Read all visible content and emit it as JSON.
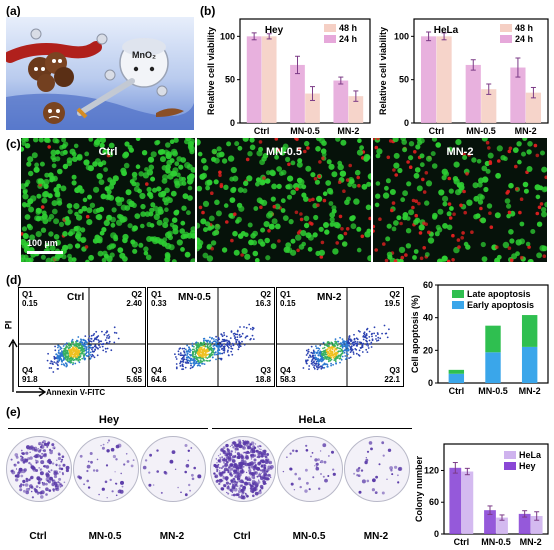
{
  "panels": {
    "a": "(a)",
    "b": "(b)",
    "c": "(c)",
    "d": "(d)",
    "e": "(e)"
  },
  "illustration": {
    "agent_label": "MnO₂"
  },
  "colors": {
    "pink24": "#e6a8da",
    "peach48": "#f5cfc4",
    "green": "#2fbf50",
    "blue": "#3aa6ea",
    "purple": "#8a47d6",
    "lavender": "#cfb3ee",
    "cell_green": "#2ecf33",
    "cell_red": "#e02020"
  },
  "panel_c": {
    "images": [
      {
        "label": "Ctrl"
      },
      {
        "label": "MN-0.5"
      },
      {
        "label": "MN-2"
      }
    ],
    "scale_bar": "100 µm"
  },
  "panel_d": {
    "x_axis": "Annexin V-FITC",
    "y_axis": "PI",
    "plots": [
      {
        "label": "Ctrl",
        "q1_name": "Q1",
        "q1": "0.15",
        "q2_name": "Q2",
        "q2": "2.40",
        "q3_name": "Q3",
        "q3": "5.65",
        "q4_name": "Q4",
        "q4": "91.8"
      },
      {
        "label": "MN-0.5",
        "q1_name": "Q1",
        "q1": "0.33",
        "q2_name": "Q2",
        "q2": "16.3",
        "q3_name": "Q3",
        "q3": "18.8",
        "q4_name": "Q4",
        "q4": "64.6"
      },
      {
        "label": "MN-2",
        "q1_name": "Q1",
        "q1": "0.15",
        "q2_name": "Q2",
        "q2": "19.5",
        "q3_name": "Q3",
        "q3": "22.1",
        "q4_name": "Q4",
        "q4": "58.3"
      }
    ]
  },
  "panel_e": {
    "group_hey": "Hey",
    "group_hela": "HeLa",
    "dishes": [
      {
        "label": "Ctrl"
      },
      {
        "label": "MN-0.5"
      },
      {
        "label": "MN-2"
      },
      {
        "label": "Ctrl"
      },
      {
        "label": "MN-0.5"
      },
      {
        "label": "MN-2"
      }
    ]
  },
  "chart_data": [
    {
      "id": "b-hey",
      "type": "bar",
      "title": "Hey",
      "categories": [
        "Ctrl",
        "MN-0.5",
        "MN-2"
      ],
      "ylabel": "Relative cell viability",
      "ylim": [
        0,
        120
      ],
      "yticks": [
        0,
        50,
        100
      ],
      "legend": "top-right",
      "series": [
        {
          "name": "24 h",
          "color": "#e6a8da",
          "values": [
            100,
            67,
            49
          ],
          "errors": [
            4,
            10,
            4
          ]
        },
        {
          "name": "48 h",
          "color": "#f5cfc4",
          "values": [
            100,
            34,
            31
          ],
          "errors": [
            3,
            8,
            6
          ]
        }
      ]
    },
    {
      "id": "b-hela",
      "type": "bar",
      "title": "HeLa",
      "categories": [
        "Ctrl",
        "MN-0.5",
        "MN-2"
      ],
      "ylabel": "Relative cell viability",
      "ylim": [
        0,
        120
      ],
      "yticks": [
        0,
        50,
        100
      ],
      "legend": "top-right",
      "series": [
        {
          "name": "24 h",
          "color": "#e6a8da",
          "values": [
            100,
            67,
            64
          ],
          "errors": [
            5,
            6,
            11
          ]
        },
        {
          "name": "48 h",
          "color": "#f5cfc4",
          "values": [
            100,
            39,
            35
          ],
          "errors": [
            4,
            6,
            6
          ]
        }
      ]
    },
    {
      "id": "d-apoptosis",
      "type": "bar",
      "stacked": true,
      "categories": [
        "Ctrl",
        "MN-0.5",
        "MN-2"
      ],
      "ylabel": "Cell apoptosis (%)",
      "ylim": [
        0,
        60
      ],
      "yticks": [
        0,
        20,
        40,
        60
      ],
      "legend": "top-left",
      "series": [
        {
          "name": "Early apoptosis",
          "color": "#3aa6ea",
          "values": [
            5.65,
            18.8,
            22.1
          ]
        },
        {
          "name": "Late apoptosis",
          "color": "#2fbf50",
          "values": [
            2.4,
            16.3,
            19.5
          ]
        }
      ]
    },
    {
      "id": "e-colony",
      "type": "bar",
      "categories": [
        "Ctrl",
        "MN-0.5",
        "MN-2"
      ],
      "ylabel": "Colony number",
      "ylim": [
        0,
        170
      ],
      "yticks": [
        0,
        60,
        120
      ],
      "legend": "top-right",
      "series": [
        {
          "name": "Hey",
          "color": "#8a47d6",
          "values": [
            125,
            45,
            38
          ],
          "errors": [
            10,
            8,
            6
          ]
        },
        {
          "name": "HeLa",
          "color": "#cfb3ee",
          "values": [
            118,
            31,
            34
          ],
          "errors": [
            6,
            5,
            8
          ]
        }
      ]
    }
  ]
}
